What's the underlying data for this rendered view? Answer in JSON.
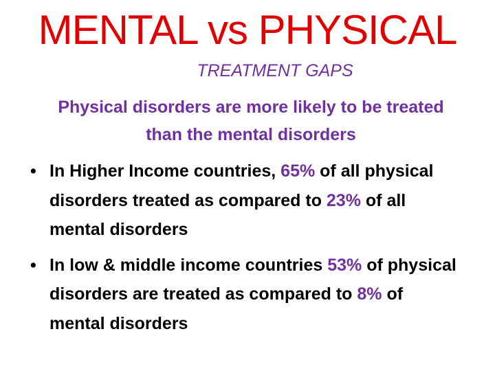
{
  "title": "MENTAL vs PHYSICAL",
  "subtitle": "TREATMENT GAPS",
  "intro": "Physical disorders are more likely to be treated than the mental disorders",
  "bullets": [
    {
      "parts": [
        "In Higher Income countries, ",
        "65%",
        " of all physical disorders treated as compared to ",
        "23%",
        " of all mental disorders"
      ]
    },
    {
      "parts": [
        "In low & middle income countries ",
        "53%",
        " of physical disorders are treated as compared to ",
        "8%",
        " of mental disorders"
      ]
    }
  ]
}
